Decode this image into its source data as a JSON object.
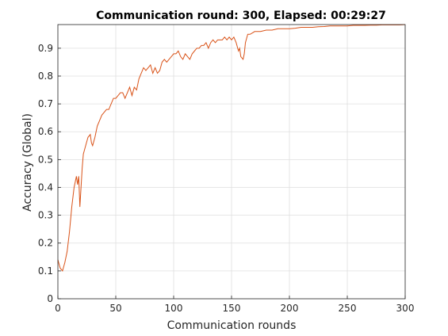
{
  "chart_data": {
    "type": "line",
    "title": "Communication round: 300, Elapsed: 00:29:27",
    "xlabel": "Communication rounds",
    "ylabel": "Accuracy (Global)",
    "xlim": [
      0,
      300
    ],
    "ylim": [
      0,
      0.985
    ],
    "grid": true,
    "legend": "none",
    "xticks": [
      0,
      50,
      100,
      150,
      200,
      250,
      300
    ],
    "yticks": [
      0,
      0.1,
      0.2,
      0.3,
      0.4,
      0.5,
      0.6,
      0.7,
      0.8,
      0.9
    ],
    "xtick_labels": [
      "0",
      "50",
      "100",
      "150",
      "200",
      "250",
      "300"
    ],
    "ytick_labels": [
      "0",
      "0.1",
      "0.2",
      "0.3",
      "0.4",
      "0.5",
      "0.6",
      "0.7",
      "0.8",
      "0.9"
    ],
    "line_color": "#d95319",
    "series": [
      {
        "x": [
          0,
          2,
          4,
          6,
          8,
          10,
          12,
          14,
          15,
          16,
          17,
          18,
          19,
          20,
          21,
          22,
          24,
          26,
          28,
          29,
          30,
          32,
          34,
          36,
          38,
          40,
          42,
          44,
          46,
          48,
          50,
          52,
          54,
          56,
          58,
          60,
          62,
          64,
          66,
          68,
          70,
          72,
          74,
          76,
          78,
          80,
          82,
          84,
          86,
          88,
          90,
          92,
          94,
          96,
          98,
          100,
          102,
          104,
          106,
          108,
          110,
          112,
          114,
          116,
          118,
          120,
          122,
          124,
          126,
          128,
          130,
          132,
          134,
          136,
          138,
          140,
          142,
          144,
          146,
          148,
          150,
          152,
          154,
          156,
          157,
          158,
          160,
          161,
          162,
          164,
          166,
          168,
          170,
          175,
          180,
          185,
          190,
          195,
          200,
          205,
          210,
          215,
          220,
          225,
          230,
          235,
          240,
          245,
          250,
          255,
          260,
          265,
          270,
          275,
          280,
          285,
          290,
          295,
          300
        ],
        "values": [
          0.14,
          0.11,
          0.1,
          0.13,
          0.17,
          0.24,
          0.33,
          0.4,
          0.42,
          0.44,
          0.41,
          0.44,
          0.33,
          0.4,
          0.47,
          0.52,
          0.55,
          0.58,
          0.59,
          0.56,
          0.55,
          0.58,
          0.62,
          0.64,
          0.66,
          0.67,
          0.68,
          0.68,
          0.7,
          0.72,
          0.72,
          0.73,
          0.74,
          0.74,
          0.72,
          0.74,
          0.76,
          0.73,
          0.76,
          0.75,
          0.79,
          0.81,
          0.83,
          0.82,
          0.83,
          0.84,
          0.81,
          0.83,
          0.81,
          0.82,
          0.85,
          0.86,
          0.85,
          0.86,
          0.87,
          0.88,
          0.88,
          0.89,
          0.87,
          0.86,
          0.88,
          0.87,
          0.86,
          0.88,
          0.89,
          0.9,
          0.9,
          0.91,
          0.91,
          0.92,
          0.9,
          0.92,
          0.93,
          0.92,
          0.93,
          0.93,
          0.93,
          0.94,
          0.93,
          0.94,
          0.93,
          0.94,
          0.92,
          0.89,
          0.9,
          0.87,
          0.86,
          0.88,
          0.92,
          0.95,
          0.95,
          0.955,
          0.96,
          0.96,
          0.965,
          0.965,
          0.97,
          0.97,
          0.97,
          0.972,
          0.975,
          0.975,
          0.975,
          0.977,
          0.978,
          0.98,
          0.98,
          0.98,
          0.98,
          0.982,
          0.982,
          0.982,
          0.983,
          0.983,
          0.984,
          0.984,
          0.984,
          0.984,
          0.985
        ]
      }
    ]
  }
}
